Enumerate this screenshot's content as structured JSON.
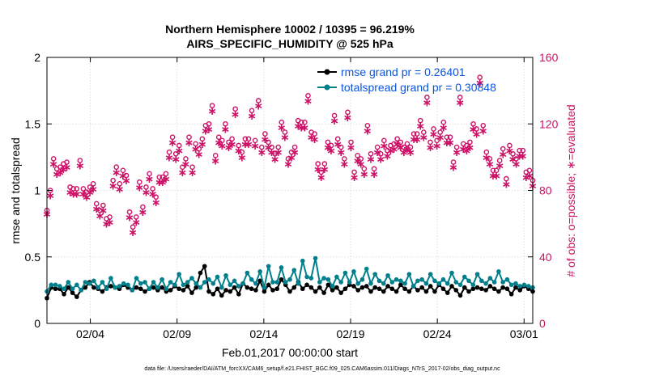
{
  "chart_data": {
    "type": "line",
    "title": "Northern Hemisphere 10002 / 10395 = 96.219%",
    "subtitle": "AIRS_SPECIFIC_HUMIDITY @ 525 hPa",
    "xlabel": "Feb.01,2017 00:00:00 start",
    "ylabel_left": "rmse and totalspread",
    "ylabel_right": "# of obs: o=possible; ∗=evaluated",
    "xlim": [
      0,
      28
    ],
    "ylim_left": [
      0,
      2
    ],
    "ylim_right": [
      0,
      160
    ],
    "x_ticks": [
      {
        "x": 2.5,
        "label": "02/04"
      },
      {
        "x": 7.5,
        "label": "02/09"
      },
      {
        "x": 12.5,
        "label": "02/14"
      },
      {
        "x": 17.5,
        "label": "02/19"
      },
      {
        "x": 22.5,
        "label": "02/24"
      },
      {
        "x": 27.5,
        "label": "03/01"
      }
    ],
    "y_ticks_left": [
      {
        "v": 0,
        "label": "0"
      },
      {
        "v": 0.5,
        "label": "0.5"
      },
      {
        "v": 1,
        "label": "1"
      },
      {
        "v": 1.5,
        "label": "1.5"
      },
      {
        "v": 2,
        "label": "2"
      }
    ],
    "y_ticks_right": [
      {
        "v": 0,
        "label": "0"
      },
      {
        "v": 40,
        "label": "40"
      },
      {
        "v": 80,
        "label": "80"
      },
      {
        "v": 120,
        "label": "120"
      },
      {
        "v": 160,
        "label": "160"
      }
    ],
    "grid": true,
    "legend_position": "top-right",
    "x_step": 0.25,
    "series": [
      {
        "name": "rmse grand pr = 0.26401",
        "axis": "left",
        "color": "#000000",
        "marker": "dot",
        "values": [
          0.19,
          0.27,
          0.26,
          0.26,
          0.22,
          0.27,
          0.23,
          0.2,
          0.25,
          0.27,
          0.31,
          0.27,
          0.26,
          0.24,
          0.27,
          0.28,
          0.27,
          0.26,
          0.29,
          0.27,
          0.25,
          0.27,
          0.26,
          0.24,
          0.26,
          0.27,
          0.25,
          0.27,
          0.24,
          0.25,
          0.28,
          0.26,
          0.25,
          0.28,
          0.23,
          0.27,
          0.38,
          0.43,
          0.24,
          0.22,
          0.26,
          0.21,
          0.25,
          0.24,
          0.27,
          0.22,
          0.3,
          0.27,
          0.26,
          0.25,
          0.32,
          0.24,
          0.29,
          0.25,
          0.26,
          0.33,
          0.29,
          0.24,
          0.27,
          0.31,
          0.26,
          0.29,
          0.27,
          0.24,
          0.27,
          0.23,
          0.29,
          0.25,
          0.27,
          0.23,
          0.26,
          0.29,
          0.28,
          0.25,
          0.27,
          0.28,
          0.24,
          0.27,
          0.26,
          0.24,
          0.28,
          0.26,
          0.24,
          0.29,
          0.26,
          0.24,
          0.28,
          0.25,
          0.27,
          0.24,
          0.28,
          0.24,
          0.29,
          0.26,
          0.23,
          0.28,
          0.25,
          0.21,
          0.27,
          0.24,
          0.26,
          0.27,
          0.26,
          0.25,
          0.28,
          0.26,
          0.24,
          0.27,
          0.26,
          0.22,
          0.27,
          0.25,
          0.28,
          0.26,
          0.24
        ]
      },
      {
        "name": "totalspread grand pr = 0.30848",
        "axis": "left",
        "color": "#00808c",
        "marker": "dot",
        "values": [
          0.24,
          0.29,
          0.29,
          0.28,
          0.26,
          0.31,
          0.26,
          0.29,
          0.25,
          0.31,
          0.3,
          0.32,
          0.27,
          0.31,
          0.26,
          0.34,
          0.27,
          0.28,
          0.3,
          0.29,
          0.25,
          0.34,
          0.3,
          0.31,
          0.26,
          0.31,
          0.27,
          0.33,
          0.26,
          0.31,
          0.29,
          0.37,
          0.29,
          0.31,
          0.34,
          0.3,
          0.27,
          0.31,
          0.33,
          0.3,
          0.35,
          0.27,
          0.36,
          0.29,
          0.32,
          0.28,
          0.3,
          0.38,
          0.33,
          0.3,
          0.39,
          0.27,
          0.43,
          0.31,
          0.31,
          0.42,
          0.31,
          0.33,
          0.4,
          0.3,
          0.47,
          0.35,
          0.34,
          0.49,
          0.31,
          0.34,
          0.33,
          0.28,
          0.35,
          0.31,
          0.38,
          0.31,
          0.39,
          0.3,
          0.33,
          0.41,
          0.3,
          0.37,
          0.32,
          0.3,
          0.36,
          0.31,
          0.33,
          0.32,
          0.3,
          0.37,
          0.28,
          0.32,
          0.33,
          0.3,
          0.37,
          0.32,
          0.3,
          0.33,
          0.3,
          0.38,
          0.31,
          0.29,
          0.35,
          0.32,
          0.29,
          0.37,
          0.32,
          0.3,
          0.34,
          0.31,
          0.39,
          0.31,
          0.33,
          0.29,
          0.3,
          0.28,
          0.29,
          0.28,
          0.27
        ]
      },
      {
        "name": "# obs possible",
        "axis": "right",
        "color": "#cc1166",
        "marker": "circle",
        "values": [
          68,
          80,
          99,
          93,
          94,
          96,
          97,
          82,
          81,
          81,
          98,
          81,
          79,
          82,
          84,
          72,
          68,
          71,
          63,
          64,
          86,
          94,
          84,
          92,
          89,
          67,
          58,
          64,
          85,
          70,
          82,
          90,
          81,
          76,
          88,
          88,
          90,
          103,
          112,
          102,
          107,
          94,
          99,
          112,
          94,
          108,
          105,
          111,
          119,
          120,
          131,
          101,
          112,
          110,
          120,
          109,
          111,
          129,
          107,
          103,
          111,
          111,
          128,
          110,
          134,
          106,
          114,
          109,
          106,
          102,
          106,
          121,
          115,
          99,
          103,
          106,
          122,
          121,
          121,
          137,
          115,
          114,
          96,
          91,
          96,
          109,
          107,
          125,
          111,
          106,
          99,
          127,
          109,
          91,
          101,
          99,
          93,
          119,
          102,
          93,
          106,
          102,
          110,
          104,
          107,
          108,
          111,
          109,
          106,
          108,
          106,
          114,
          114,
          122,
          115,
          136,
          109,
          117,
          110,
          115,
          121,
          112,
          112,
          97,
          106,
          136,
          108,
          107,
          109,
          120,
          117,
          148,
          119,
          103,
          99,
          92,
          92,
          98,
          105,
          87,
          107,
          102,
          99,
          104,
          104,
          91,
          92,
          86
        ]
      },
      {
        "name": "# obs evaluated",
        "axis": "right",
        "color": "#cc1166",
        "marker": "asterisk",
        "values": [
          66,
          77,
          96,
          90,
          91,
          93,
          94,
          79,
          78,
          78,
          95,
          78,
          76,
          79,
          81,
          69,
          65,
          68,
          60,
          61,
          83,
          91,
          81,
          89,
          86,
          64,
          55,
          61,
          82,
          67,
          79,
          87,
          78,
          73,
          85,
          85,
          87,
          100,
          109,
          99,
          104,
          91,
          96,
          109,
          91,
          105,
          102,
          108,
          116,
          117,
          128,
          98,
          109,
          107,
          117,
          106,
          108,
          126,
          104,
          100,
          108,
          108,
          125,
          107,
          131,
          103,
          111,
          106,
          103,
          99,
          103,
          118,
          112,
          96,
          100,
          103,
          119,
          118,
          118,
          134,
          112,
          111,
          93,
          88,
          93,
          106,
          104,
          122,
          108,
          103,
          96,
          124,
          106,
          88,
          98,
          96,
          90,
          116,
          99,
          90,
          103,
          99,
          107,
          101,
          104,
          105,
          108,
          106,
          103,
          105,
          103,
          111,
          111,
          119,
          112,
          133,
          106,
          114,
          107,
          112,
          118,
          109,
          109,
          94,
          103,
          133,
          105,
          104,
          106,
          117,
          114,
          145,
          116,
          100,
          96,
          89,
          89,
          95,
          102,
          84,
          104,
          99,
          96,
          101,
          101,
          88,
          89,
          83
        ]
      }
    ]
  },
  "footer_text": "data file: /Users/raeder/DAI/ATM_forcXX/CAM6_setup/f.e21.FHIST_BGC.f09_025.CAM6assim.011/Diags_NTrS_2017-02/obs_diag_output.nc"
}
